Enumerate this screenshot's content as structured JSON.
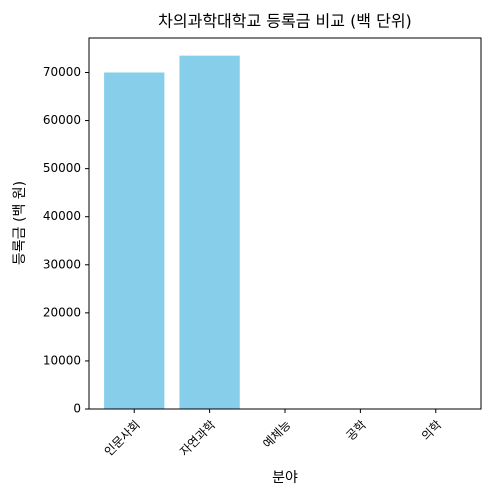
{
  "chart_data": {
    "type": "bar",
    "title": "차의과학대학교 등록금 비교 (백 단위)",
    "x_label": "분야",
    "y_label": "등록금 (백 원)",
    "categories": [
      "인문사회",
      "자연과학",
      "예체능",
      "공학",
      "의학"
    ],
    "values": [
      70000,
      73500,
      0,
      0,
      0
    ],
    "color": "#87ceeb",
    "ylim": [
      0,
      77175
    ],
    "yticks": [
      0,
      10000,
      20000,
      30000,
      40000,
      50000,
      60000,
      70000
    ],
    "grid": false
  }
}
